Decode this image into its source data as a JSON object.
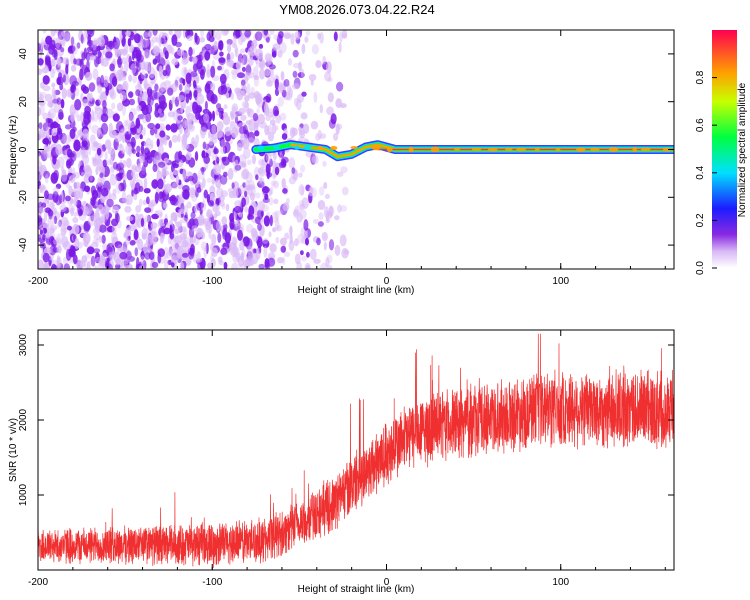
{
  "title": "YM08.2026.073.04.22.R24",
  "colors": {
    "snr_line": "#f03030",
    "signal_core": "#e04040",
    "noise_dark": "#7a18e6",
    "noise_light": "#d9b8f6",
    "axis": "#000000"
  },
  "chart_data": [
    {
      "type": "heatmap",
      "name": "spectrogram",
      "title": "",
      "xlabel": "Height of straight line (km)",
      "ylabel": "Frequency (Hz)",
      "xlim": [
        -200,
        165
      ],
      "ylim": [
        -50,
        50
      ],
      "xticks": [
        -200,
        -100,
        0,
        100
      ],
      "xtick_labels": [
        "-200",
        "-100",
        "0",
        "100"
      ],
      "yticks": [
        -40,
        -20,
        0,
        20,
        40
      ],
      "ytick_labels": [
        "-40",
        "-20",
        "0",
        "20",
        "40"
      ],
      "signal_start_km": -75,
      "signal_frequency_hz": 0,
      "noise_end_km": -35,
      "colorbar": {
        "label": "Normalized spectral amplitude",
        "range": [
          0,
          1
        ],
        "ticks": [
          0.0,
          0.2,
          0.4,
          0.6,
          0.8
        ],
        "tick_labels": [
          "0.0",
          "0.2",
          "0.4",
          "0.6",
          "0.8"
        ]
      }
    },
    {
      "type": "line",
      "name": "snr",
      "title": "",
      "xlabel": "Height of straight line (km)",
      "ylabel": "SNR (10 * v/v)",
      "xlim": [
        -200,
        165
      ],
      "ylim": [
        0,
        3200
      ],
      "xticks": [
        -200,
        -100,
        0,
        100
      ],
      "xtick_labels": [
        "-200",
        "-100",
        "0",
        "100"
      ],
      "yticks": [
        1000,
        2000,
        3000
      ],
      "ytick_labels": [
        "1000",
        "2000",
        "3000"
      ],
      "trend": {
        "x": [
          -200,
          -150,
          -100,
          -70,
          -50,
          -30,
          -15,
          0,
          10,
          20,
          40,
          60,
          80,
          100,
          120,
          140,
          165
        ],
        "y": [
          320,
          330,
          340,
          400,
          600,
          900,
          1250,
          1550,
          1750,
          1850,
          1950,
          2050,
          2100,
          2150,
          2150,
          2150,
          2150
        ]
      },
      "noise_amplitude": [
        {
          "x": -200,
          "amp": 250
        },
        {
          "x": -50,
          "amp": 350
        },
        {
          "x": 0,
          "amp": 500
        },
        {
          "x": 165,
          "amp": 600
        }
      ],
      "max_value": 3150
    }
  ]
}
